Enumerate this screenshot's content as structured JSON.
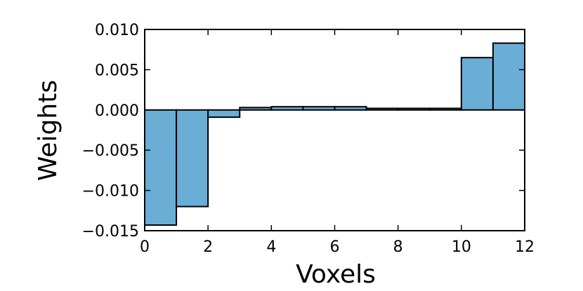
{
  "chart_data": {
    "type": "bar",
    "title": "",
    "xlabel": "Voxels",
    "ylabel": "Weights",
    "xlim": [
      0,
      12
    ],
    "ylim": [
      -0.015,
      0.01
    ],
    "bins": [
      {
        "x_start": 0,
        "x_end": 1,
        "value": -0.0143
      },
      {
        "x_start": 1,
        "x_end": 2,
        "value": -0.012
      },
      {
        "x_start": 2,
        "x_end": 3,
        "value": -0.0009
      },
      {
        "x_start": 3,
        "x_end": 4,
        "value": 0.0003
      },
      {
        "x_start": 4,
        "x_end": 5,
        "value": 0.0004
      },
      {
        "x_start": 5,
        "x_end": 6,
        "value": 0.0004
      },
      {
        "x_start": 6,
        "x_end": 7,
        "value": 0.0004
      },
      {
        "x_start": 7,
        "x_end": 8,
        "value": 0.0002
      },
      {
        "x_start": 8,
        "x_end": 9,
        "value": 0.0002
      },
      {
        "x_start": 9,
        "x_end": 10,
        "value": 0.0002
      },
      {
        "x_start": 10,
        "x_end": 11,
        "value": 0.0065
      },
      {
        "x_start": 11,
        "x_end": 12,
        "value": 0.0083
      }
    ],
    "xticks": [
      0,
      2,
      4,
      6,
      8,
      10,
      12
    ],
    "xtick_labels": [
      "0",
      "2",
      "4",
      "6",
      "8",
      "10",
      "12"
    ],
    "yticks": [
      0.01,
      0.005,
      0.0,
      -0.005,
      -0.01,
      -0.015
    ],
    "ytick_labels": [
      "0.010",
      "0.005",
      "0.000",
      "−0.005",
      "−0.010",
      "−0.015"
    ],
    "bar_color": "#6aaed6",
    "edge_color": "#000000",
    "grid": false,
    "legend": false
  }
}
